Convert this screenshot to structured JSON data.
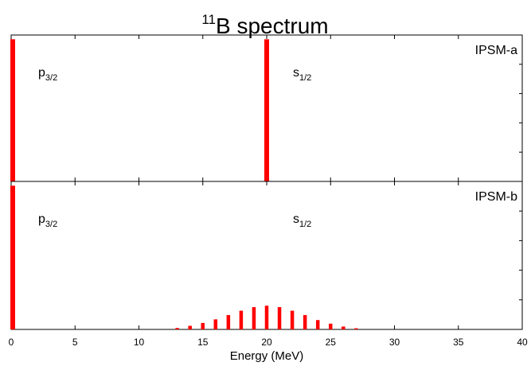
{
  "title": {
    "superscript": "11",
    "main": "B spectrum"
  },
  "colors": {
    "bars": "#ff0000",
    "axes": "#000000"
  },
  "chart_data": [
    {
      "type": "bar",
      "panel_label": "IPSM-a",
      "annotations": [
        {
          "base": "p",
          "sub": "3/2"
        },
        {
          "base": "s",
          "sub": "1/2"
        }
      ],
      "x": [
        0,
        20
      ],
      "values": [
        1.0,
        1.0
      ],
      "xlim": [
        0,
        40
      ],
      "ylim": [
        0,
        1.03
      ],
      "xticks": [
        0,
        5,
        10,
        15,
        20,
        25,
        30,
        35,
        40
      ],
      "yticks_labeled": false
    },
    {
      "type": "bar",
      "panel_label": "IPSM-b",
      "annotations": [
        {
          "base": "p",
          "sub": "3/2"
        },
        {
          "base": "s",
          "sub": "1/2"
        }
      ],
      "x": [
        0,
        13,
        14,
        15,
        16,
        17,
        18,
        19,
        20,
        21,
        22,
        23,
        24,
        25,
        26,
        27
      ],
      "values": [
        1.0,
        0.01,
        0.025,
        0.045,
        0.07,
        0.1,
        0.13,
        0.155,
        0.165,
        0.155,
        0.13,
        0.1,
        0.065,
        0.04,
        0.02,
        0.008
      ],
      "xlim": [
        0,
        40
      ],
      "ylim": [
        0,
        1.03
      ],
      "xticks": [
        0,
        5,
        10,
        15,
        20,
        25,
        30,
        35,
        40
      ],
      "xlabel": "Energy (MeV)",
      "tick_labels": [
        "0",
        "5",
        "10",
        "15",
        "20",
        "25",
        "30",
        "35",
        "40"
      ],
      "yticks_labeled": false
    }
  ]
}
